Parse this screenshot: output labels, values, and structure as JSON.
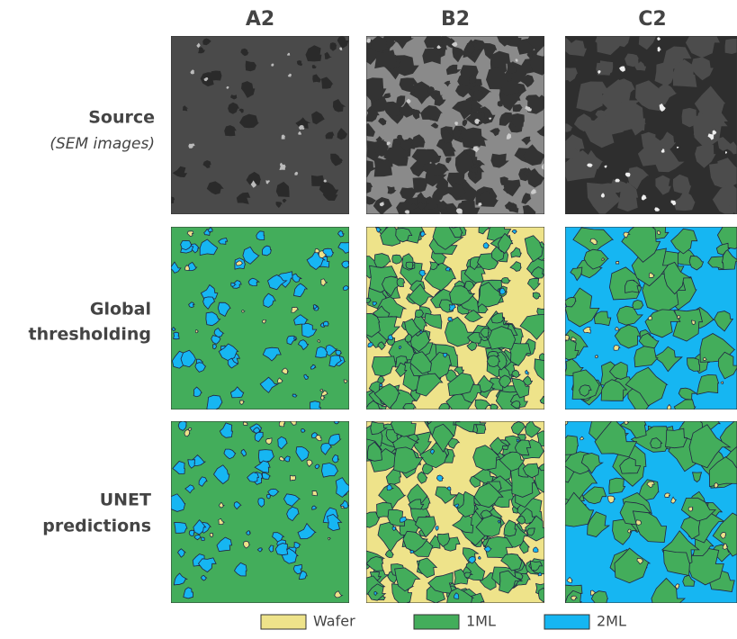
{
  "columns": [
    "A2",
    "B2",
    "C2"
  ],
  "rows": [
    {
      "label": "Source",
      "sublabel": "(SEM images)"
    },
    {
      "lines": [
        "Global",
        "thresholding"
      ]
    },
    {
      "lines": [
        "UNET",
        "predictions"
      ]
    }
  ],
  "legend": [
    {
      "name": "Wafer",
      "color": "#eee38a"
    },
    {
      "name": "1ML",
      "color": "#43ad5b"
    },
    {
      "name": "2ML",
      "color": "#16b6f2"
    }
  ]
}
